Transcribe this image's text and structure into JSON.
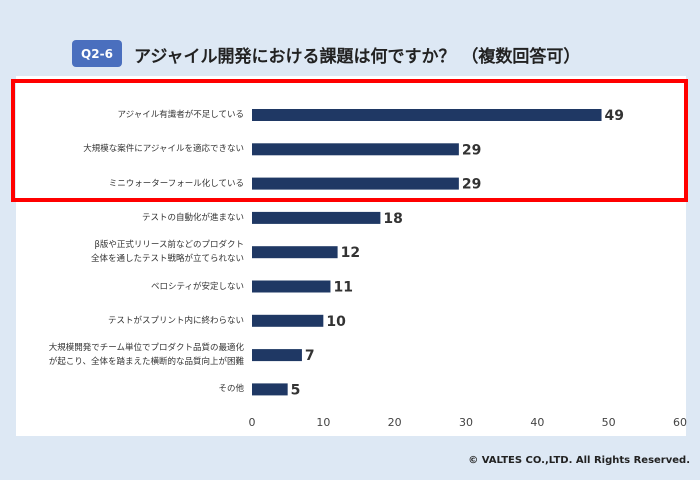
{
  "badge": "Q2-6",
  "chart_data": {
    "type": "bar",
    "orientation": "horizontal",
    "title": "アジャイル開発における課題は何ですか？ （複数回答可）",
    "categories": [
      "アジャイル有識者が不足している",
      "大規模な案件にアジャイルを適応できない",
      "ミニウォーターフォール化している",
      "テストの自動化が進まない",
      "β版や正式リリース前などのプロダクト\n全体を通したテスト戦略が立てられない",
      "ベロシティが安定しない",
      "テストがスプリント内に終わらない",
      "大規模開発でチーム単位でプロダクト品質の最適化\nが起こり、全体を踏まえた横断的な品質向上が困難",
      "その他"
    ],
    "values": [
      49,
      29,
      29,
      18,
      12,
      11,
      10,
      7,
      5
    ],
    "color": "#1f3864",
    "xlim": [
      0,
      60
    ],
    "xticks": [
      0,
      10,
      20,
      30,
      40,
      50,
      60
    ]
  },
  "footer": "© VALTES CO.,LTD. All Rights Reserved."
}
